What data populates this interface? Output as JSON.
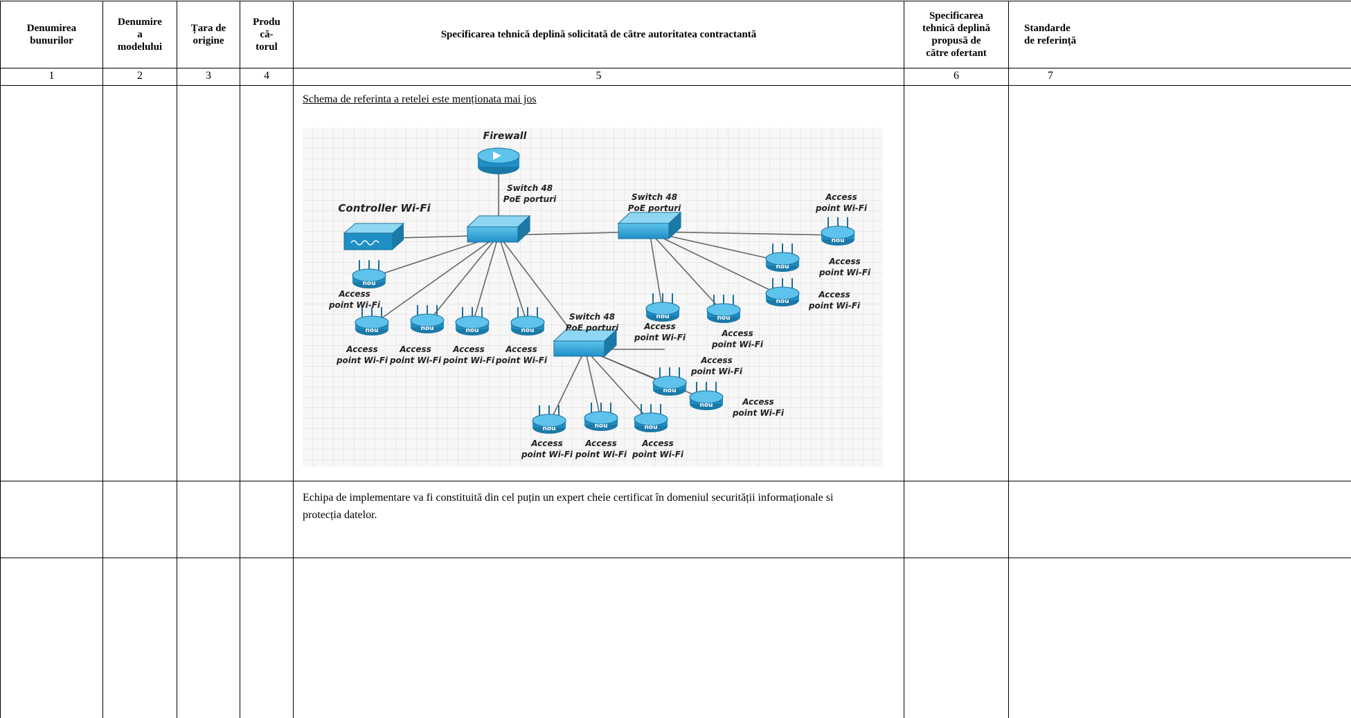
{
  "table": {
    "header": [
      "Denumirea\nbunurilor",
      "Denumire\na\nmodelului",
      "Țara de\norigine",
      "Produ\ncă-\ntorul",
      "Specificarea tehnică deplină solicitată de către autoritatea contractantă",
      "Specificarea\ntehnică deplină\npropusă de\ncătre ofertant",
      "Standarde\nde referință"
    ],
    "column_numbers": [
      "1",
      "2",
      "3",
      "4",
      "5",
      "6",
      "7"
    ],
    "rows": [
      {
        "specification_caption": "Schema de referinta a retelei este menționata mai jos"
      },
      {
        "specification": "Echipa de implementare va fi constituită din cel puțin un expert cheie certificat în domeniul securității informaționale si protecția datelor."
      }
    ]
  },
  "diagram": {
    "access_point_badge": "nou",
    "nodes": [
      {
        "label": [
          "Firewall"
        ]
      },
      {
        "label": [
          "Switch 48",
          "PoE porturi"
        ]
      },
      {
        "label": [
          "Controller Wi-Fi"
        ]
      },
      {
        "label": [
          "Switch 48",
          "PoE porturi"
        ]
      },
      {
        "label": [
          "Switch 48",
          "PoE porturi"
        ]
      },
      {
        "label": [
          "Access",
          "point Wi-Fi"
        ]
      },
      {
        "label": [
          "Access",
          "point Wi-Fi"
        ]
      },
      {
        "label": [
          "Access",
          "point Wi-Fi"
        ]
      },
      {
        "label": [
          "Access",
          "point Wi-Fi"
        ]
      },
      {
        "label": [
          "Access",
          "point Wi-Fi"
        ]
      },
      {
        "label": [
          "Access",
          "point Wi-Fi"
        ]
      },
      {
        "label": [
          "Access",
          "point Wi-Fi"
        ]
      },
      {
        "label": [
          "Access",
          "point Wi-Fi"
        ]
      },
      {
        "label": [
          "Access",
          "point Wi-Fi"
        ]
      },
      {
        "label": [
          "Access",
          "point Wi-Fi"
        ]
      },
      {
        "label": [
          "Access",
          "point Wi-Fi"
        ]
      },
      {
        "label": [
          "Access",
          "point Wi-Fi"
        ]
      },
      {
        "label": [
          "Access",
          "point Wi-Fi"
        ]
      },
      {
        "label": [
          "Access",
          "point Wi-Fi"
        ]
      },
      {
        "label": [
          "Access",
          "point Wi-Fi"
        ]
      }
    ]
  }
}
